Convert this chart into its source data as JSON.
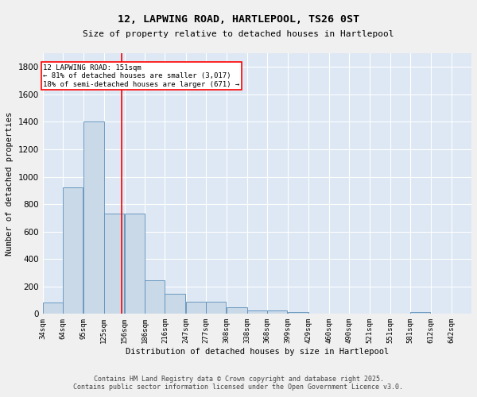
{
  "title_line1": "12, LAPWING ROAD, HARTLEPOOL, TS26 0ST",
  "title_line2": "Size of property relative to detached houses in Hartlepool",
  "xlabel": "Distribution of detached houses by size in Hartlepool",
  "ylabel": "Number of detached properties",
  "bar_color": "#c9d9e8",
  "bar_edge_color": "#5b8db8",
  "bg_color": "#dde8f4",
  "grid_color": "#ffffff",
  "vline_x": 151,
  "vline_color": "red",
  "annotation_title": "12 LAPWING ROAD: 151sqm",
  "annotation_line1": "← 81% of detached houses are smaller (3,017)",
  "annotation_line2": "18% of semi-detached houses are larger (671) →",
  "bins": [
    34,
    64,
    95,
    125,
    156,
    186,
    216,
    247,
    277,
    308,
    338,
    368,
    399,
    429,
    460,
    490,
    521,
    551,
    581,
    612,
    642
  ],
  "counts": [
    85,
    920,
    1400,
    730,
    730,
    245,
    145,
    90,
    90,
    50,
    25,
    25,
    15,
    5,
    5,
    5,
    0,
    0,
    15,
    0,
    0
  ],
  "footer_line1": "Contains HM Land Registry data © Crown copyright and database right 2025.",
  "footer_line2": "Contains public sector information licensed under the Open Government Licence v3.0.",
  "ylim": [
    0,
    1900
  ],
  "yticks": [
    0,
    200,
    400,
    600,
    800,
    1000,
    1200,
    1400,
    1600,
    1800
  ],
  "fig_width": 6.0,
  "fig_height": 5.0,
  "fig_dpi": 100
}
